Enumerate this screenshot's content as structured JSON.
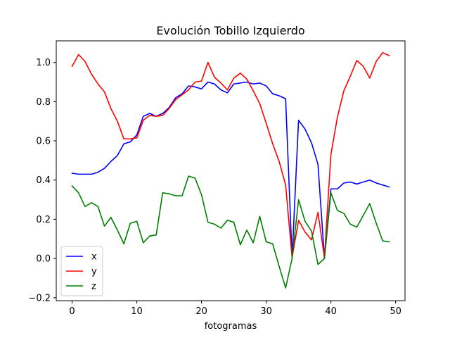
{
  "chart_data": {
    "type": "line",
    "title": "Evolución Tobillo Izquierdo",
    "xlabel": "fotogramas",
    "ylabel": "",
    "xlim": [
      -2.45,
      51.45
    ],
    "ylim": [
      -0.215,
      1.11
    ],
    "xticks": [
      0,
      10,
      20,
      30,
      40,
      50
    ],
    "yticks": [
      -0.2,
      0.0,
      0.2,
      0.4,
      0.6,
      0.8,
      1.0
    ],
    "ytick_labels": [
      "−0.2",
      "0.0",
      "0.2",
      "0.4",
      "0.6",
      "0.8",
      "1.0"
    ],
    "xtick_labels": [
      "0",
      "10",
      "20",
      "30",
      "40",
      "50"
    ],
    "grid": false,
    "legend": "lower-left",
    "x": [
      0,
      1,
      2,
      3,
      4,
      5,
      6,
      7,
      8,
      9,
      10,
      11,
      12,
      13,
      14,
      15,
      16,
      17,
      18,
      19,
      20,
      21,
      22,
      23,
      24,
      25,
      26,
      27,
      28,
      29,
      30,
      31,
      32,
      33,
      34,
      35,
      36,
      37,
      38,
      39,
      40,
      41,
      42,
      43,
      44,
      45,
      46,
      47,
      48,
      49
    ],
    "series": [
      {
        "name": "x",
        "color": "#0000ff",
        "values": [
          0.435,
          0.43,
          0.43,
          0.43,
          0.44,
          0.46,
          0.495,
          0.525,
          0.585,
          0.595,
          0.63,
          0.725,
          0.74,
          0.725,
          0.74,
          0.77,
          0.82,
          0.84,
          0.88,
          0.875,
          0.865,
          0.9,
          0.89,
          0.86,
          0.845,
          0.89,
          0.895,
          0.9,
          0.89,
          0.895,
          0.88,
          0.84,
          0.83,
          0.815,
          0.0,
          0.705,
          0.66,
          0.59,
          0.48,
          0.0,
          0.355,
          0.355,
          0.385,
          0.39,
          0.38,
          0.39,
          0.4,
          0.385,
          0.375,
          0.365
        ]
      },
      {
        "name": "y",
        "color": "#ff0000",
        "values": [
          0.98,
          1.04,
          1.005,
          0.94,
          0.89,
          0.85,
          0.765,
          0.7,
          0.61,
          0.61,
          0.615,
          0.705,
          0.73,
          0.725,
          0.73,
          0.765,
          0.81,
          0.835,
          0.86,
          0.9,
          0.905,
          1.0,
          0.925,
          0.895,
          0.86,
          0.92,
          0.945,
          0.915,
          0.855,
          0.79,
          0.69,
          0.585,
          0.495,
          0.375,
          0.005,
          0.195,
          0.135,
          0.095,
          0.235,
          0.005,
          0.53,
          0.72,
          0.855,
          0.93,
          1.01,
          0.98,
          0.92,
          1.005,
          1.05,
          1.035
        ]
      },
      {
        "name": "z",
        "color": "#008000",
        "values": [
          0.37,
          0.335,
          0.265,
          0.285,
          0.265,
          0.165,
          0.21,
          0.145,
          0.075,
          0.18,
          0.19,
          0.08,
          0.115,
          0.12,
          0.335,
          0.33,
          0.32,
          0.32,
          0.42,
          0.41,
          0.325,
          0.185,
          0.175,
          0.155,
          0.195,
          0.185,
          0.07,
          0.145,
          0.08,
          0.215,
          0.085,
          0.075,
          -0.04,
          -0.15,
          0.0,
          0.3,
          0.19,
          0.14,
          -0.03,
          0.0,
          0.335,
          0.245,
          0.23,
          0.175,
          0.16,
          0.22,
          0.28,
          0.18,
          0.09,
          0.085
        ]
      }
    ]
  }
}
